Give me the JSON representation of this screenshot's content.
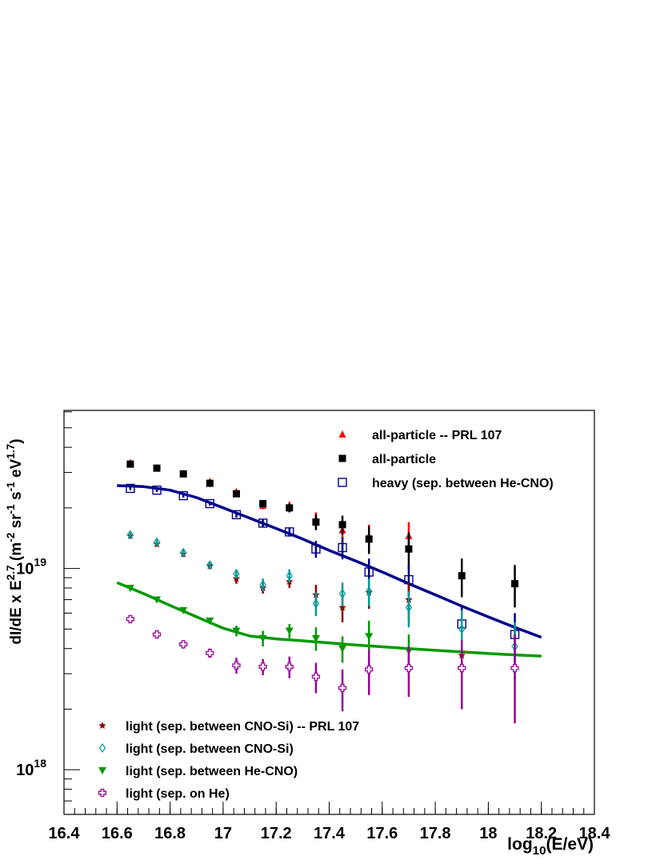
{
  "chart_data": {
    "type": "scatter",
    "title": "",
    "xlabel": "log₁₀(E/eV)",
    "ylabel": "dI/dE x E^2.7 (m⁻² sr⁻¹ s⁻¹ eV^1.7)",
    "xlim": [
      16.4,
      18.4
    ],
    "ylim": [
      6e+17,
      6.1e+19
    ],
    "yscale": "log",
    "grid": false,
    "x_ticks": [
      "16.4",
      "16.6",
      "16.8",
      "17",
      "17.2",
      "17.4",
      "17.6",
      "17.8",
      "18",
      "18.2",
      "18.4"
    ],
    "y_ticks": [
      {
        "value": 1e+18,
        "label": "10",
        "exp": "18"
      },
      {
        "value": 1e+19,
        "label": "10",
        "exp": "19"
      }
    ],
    "series": [
      {
        "name": "all-particle -- PRL 107",
        "marker": "triangle-up",
        "color": "#ff0000",
        "legend_group": "top",
        "x": [
          16.65,
          16.75,
          16.85,
          16.95,
          17.05,
          17.15,
          17.25,
          17.35,
          17.45,
          17.55,
          17.7
        ],
        "y": [
          3.35e+19,
          3.15e+19,
          2.95e+19,
          2.7e+19,
          2.4e+19,
          2.05e+19,
          2.05e+19,
          1.75e+19,
          1.55e+19,
          1.45e+19,
          1.45e+19
        ],
        "err": [
          7e+17,
          7e+17,
          7e+17,
          7e+17,
          8e+17,
          8e+17,
          1e+18,
          1.5e+18,
          1.8e+18,
          2e+18,
          2.5e+18
        ]
      },
      {
        "name": "all-particle",
        "marker": "square-filled",
        "color": "#000000",
        "legend_group": "top",
        "x": [
          16.65,
          16.75,
          16.85,
          16.95,
          17.05,
          17.15,
          17.25,
          17.35,
          17.45,
          17.55,
          17.7,
          17.9,
          18.1
        ],
        "y": [
          3.3e+19,
          3.15e+19,
          2.95e+19,
          2.65e+19,
          2.35e+19,
          2.1e+19,
          2e+19,
          1.7e+19,
          1.65e+19,
          1.4e+19,
          1.25e+19,
          9.2e+18,
          8.4e+18
        ],
        "err": [
          6e+17,
          6e+17,
          6e+17,
          6e+17,
          7e+17,
          8e+17,
          1e+18,
          1.5e+18,
          1.8e+18,
          2.2e+18,
          2.6e+18,
          2e+18,
          2e+18
        ]
      },
      {
        "name": "heavy (sep. between He-CNO)",
        "marker": "square-open",
        "color": "#00008b",
        "legend_group": "top",
        "x": [
          16.65,
          16.75,
          16.85,
          16.95,
          17.05,
          17.15,
          17.25,
          17.35,
          17.45,
          17.55,
          17.7,
          17.9,
          18.1
        ],
        "y": [
          2.5e+19,
          2.45e+19,
          2.3e+19,
          2.1e+19,
          1.85e+19,
          1.68e+19,
          1.52e+19,
          1.25e+19,
          1.27e+19,
          9.6e+18,
          8.8e+18,
          5.3e+18,
          4.7e+18
        ],
        "err": [
          5e+17,
          5e+17,
          5e+17,
          5e+17,
          6e+17,
          7e+17,
          8e+17,
          1.2e+18,
          1.6e+18,
          1.6e+18,
          1.6e+18,
          1.3e+18,
          1.3e+18
        ]
      },
      {
        "name": "light (sep. between CNO-Si) -- PRL 107",
        "marker": "star",
        "color": "#8b0000",
        "legend_group": "bottom",
        "x": [
          16.65,
          16.75,
          16.85,
          16.95,
          17.05,
          17.15,
          17.25,
          17.35,
          17.45,
          17.55,
          17.7,
          17.9
        ],
        "y": [
          1.45e+19,
          1.32e+19,
          1.18e+19,
          1.03e+19,
          8.9e+18,
          8e+18,
          8.6e+18,
          7.4e+18,
          6.4e+18,
          7.6e+18,
          7e+18,
          3.7e+18
        ],
        "err": [
          4e+17,
          4e+17,
          4e+17,
          4e+17,
          5e+17,
          5e+17,
          6e+17,
          9e+17,
          1e+18,
          1.3e+18,
          1.5e+18,
          1e+18
        ]
      },
      {
        "name": "light (sep. between CNO-Si)",
        "marker": "diamond-open",
        "color": "#009999",
        "legend_group": "bottom",
        "x": [
          16.65,
          16.75,
          16.85,
          16.95,
          17.05,
          17.15,
          17.25,
          17.35,
          17.45,
          17.55,
          17.7,
          17.9,
          18.1
        ],
        "y": [
          1.47e+19,
          1.35e+19,
          1.2e+19,
          1.04e+19,
          9.4e+18,
          8.3e+18,
          9.2e+18,
          6.7e+18,
          7.5e+18,
          7.7e+18,
          6.4e+18,
          5e+18,
          4.1e+18
        ],
        "err": [
          4e+17,
          4e+17,
          4e+17,
          4e+17,
          5e+17,
          6e+17,
          7e+17,
          9e+17,
          1e+18,
          1.2e+18,
          1.3e+18,
          1.2e+18,
          1.3e+18
        ]
      },
      {
        "name": "light (sep. between He-CNO)",
        "marker": "triangle-down",
        "color": "#009900",
        "legend_group": "bottom",
        "x": [
          16.65,
          16.75,
          16.85,
          16.95,
          17.05,
          17.15,
          17.25,
          17.35,
          17.45,
          17.55,
          17.7
        ],
        "y": [
          8e+18,
          7e+18,
          6.2e+18,
          5.5e+18,
          4.9e+18,
          4.5e+18,
          4.9e+18,
          4.5e+18,
          4e+18,
          4.6e+18,
          3.9e+18
        ],
        "err": [
          2e+17,
          2e+17,
          2e+17,
          2e+17,
          3e+17,
          4e+17,
          4e+17,
          6e+17,
          6e+17,
          9e+17,
          8e+17
        ]
      },
      {
        "name": "light (sep. on He)",
        "marker": "cross-open",
        "color": "#990099",
        "legend_group": "bottom",
        "x": [
          16.65,
          16.75,
          16.85,
          16.95,
          17.05,
          17.15,
          17.25,
          17.35,
          17.45,
          17.55,
          17.7,
          17.9,
          18.1
        ],
        "y": [
          5.6e+18,
          4.7e+18,
          4.2e+18,
          3.8e+18,
          3.3e+18,
          3.25e+18,
          3.25e+18,
          2.9e+18,
          2.55e+18,
          3.15e+18,
          3.2e+18,
          3.2e+18,
          3.2e+18
        ],
        "err": [
          2e+17,
          2e+17,
          2e+17,
          2e+17,
          3e+17,
          3e+17,
          4e+17,
          5e+17,
          6e+17,
          8e+17,
          9e+17,
          1.2e+18,
          1.5e+18
        ]
      }
    ],
    "fits": [
      {
        "name": "heavy fit",
        "color": "#00008b",
        "x": [
          16.6,
          16.7,
          16.8,
          16.9,
          17.0,
          17.1,
          17.2,
          17.3,
          17.4,
          17.5,
          17.6,
          17.7,
          17.8,
          17.9,
          18.0,
          18.1,
          18.2
        ],
        "y": [
          2.58e+19,
          2.55e+19,
          2.45e+19,
          2.25e+19,
          2e+19,
          1.78e+19,
          1.58e+19,
          1.4e+19,
          1.23e+19,
          1.09e+19,
          9.6e+18,
          8.4e+18,
          7.4e+18,
          6.5e+18,
          5.75e+18,
          5.1e+18,
          4.55e+18
        ]
      },
      {
        "name": "light fit",
        "color": "#009900",
        "x": [
          16.6,
          16.7,
          16.8,
          16.9,
          17.0,
          17.1,
          17.2,
          17.3,
          17.4,
          17.5,
          17.6,
          17.7,
          17.8,
          17.9,
          18.0,
          18.1,
          18.2
        ],
        "y": [
          8.5e+18,
          7.5e+18,
          6.55e+18,
          5.75e+18,
          5.05e+18,
          4.62e+18,
          4.47e+18,
          4.37e+18,
          4.27e+18,
          4.17e+18,
          4.08e+18,
          4e+18,
          3.92e+18,
          3.85e+18,
          3.78e+18,
          3.72e+18,
          3.67e+18
        ]
      }
    ]
  }
}
